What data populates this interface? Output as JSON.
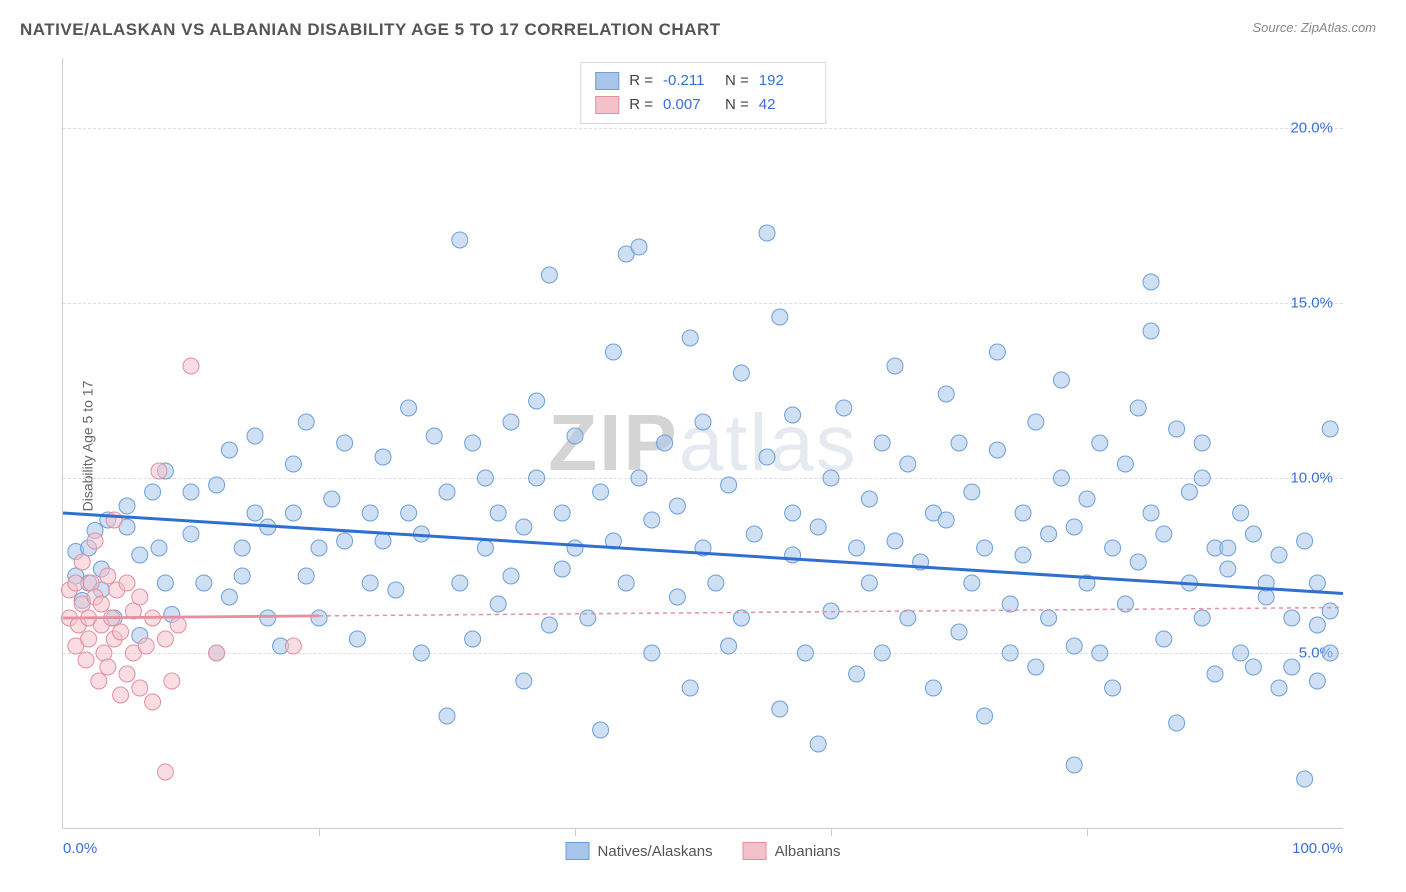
{
  "header": {
    "title": "NATIVE/ALASKAN VS ALBANIAN DISABILITY AGE 5 TO 17 CORRELATION CHART",
    "source_label": "Source: ZipAtlas.com"
  },
  "chart": {
    "type": "scatter",
    "ylabel": "Disability Age 5 to 17",
    "xlim": [
      0,
      100
    ],
    "ylim": [
      0,
      22
    ],
    "xticks": [
      0,
      20,
      40,
      60,
      80,
      100
    ],
    "xtick_labels_shown": {
      "0": "0.0%",
      "100": "100.0%"
    },
    "yticks": [
      5,
      10,
      15,
      20
    ],
    "ytick_labels": [
      "5.0%",
      "10.0%",
      "15.0%",
      "20.0%"
    ],
    "grid_color": "#dddddd",
    "axis_color": "#cccccc",
    "background_color": "#ffffff",
    "watermark_text": "ZIPatlas",
    "dot_radius": 8,
    "dot_opacity": 0.55,
    "series": [
      {
        "name": "Natives/Alaskans",
        "fill": "#a8c6ec",
        "stroke": "#6d9fd8",
        "line_color": "#2f6fd0",
        "line_width": 3,
        "line_dash": "none",
        "trend": {
          "y_at_x0": 9.0,
          "y_at_x100": 6.7
        },
        "R": "-0.211",
        "N": "192",
        "points": [
          [
            1,
            7.2
          ],
          [
            1,
            7.9
          ],
          [
            1.5,
            6.5
          ],
          [
            2,
            7.0
          ],
          [
            2,
            8.0
          ],
          [
            2.5,
            8.5
          ],
          [
            3,
            6.8
          ],
          [
            3,
            7.4
          ],
          [
            3.5,
            8.8
          ],
          [
            4,
            6.0
          ],
          [
            5,
            8.6
          ],
          [
            5,
            9.2
          ],
          [
            6,
            5.5
          ],
          [
            6,
            7.8
          ],
          [
            7,
            9.6
          ],
          [
            7.5,
            8.0
          ],
          [
            8,
            7.0
          ],
          [
            8,
            10.2
          ],
          [
            8.5,
            6.1
          ],
          [
            10,
            8.4
          ],
          [
            10,
            9.6
          ],
          [
            11,
            7.0
          ],
          [
            12,
            9.8
          ],
          [
            12,
            5.0
          ],
          [
            13,
            6.6
          ],
          [
            13,
            10.8
          ],
          [
            14,
            8.0
          ],
          [
            14,
            7.2
          ],
          [
            15,
            9.0
          ],
          [
            15,
            11.2
          ],
          [
            16,
            6.0
          ],
          [
            16,
            8.6
          ],
          [
            17,
            5.2
          ],
          [
            18,
            9.0
          ],
          [
            18,
            10.4
          ],
          [
            19,
            7.2
          ],
          [
            19,
            11.6
          ],
          [
            20,
            8.0
          ],
          [
            20,
            6.0
          ],
          [
            21,
            9.4
          ],
          [
            22,
            8.2
          ],
          [
            22,
            11.0
          ],
          [
            23,
            5.4
          ],
          [
            24,
            9.0
          ],
          [
            24,
            7.0
          ],
          [
            25,
            10.6
          ],
          [
            25,
            8.2
          ],
          [
            26,
            6.8
          ],
          [
            27,
            12.0
          ],
          [
            27,
            9.0
          ],
          [
            28,
            5.0
          ],
          [
            28,
            8.4
          ],
          [
            29,
            11.2
          ],
          [
            30,
            3.2
          ],
          [
            30,
            9.6
          ],
          [
            31,
            7.0
          ],
          [
            31,
            16.8
          ],
          [
            32,
            11.0
          ],
          [
            32,
            5.4
          ],
          [
            33,
            8.0
          ],
          [
            33,
            10.0
          ],
          [
            34,
            9.0
          ],
          [
            34,
            6.4
          ],
          [
            35,
            11.6
          ],
          [
            35,
            7.2
          ],
          [
            36,
            4.2
          ],
          [
            36,
            8.6
          ],
          [
            37,
            10.0
          ],
          [
            37,
            12.2
          ],
          [
            38,
            5.8
          ],
          [
            38,
            15.8
          ],
          [
            39,
            9.0
          ],
          [
            39,
            7.4
          ],
          [
            40,
            8.0
          ],
          [
            40,
            11.2
          ],
          [
            41,
            6.0
          ],
          [
            42,
            9.6
          ],
          [
            42,
            2.8
          ],
          [
            43,
            8.2
          ],
          [
            43,
            13.6
          ],
          [
            44,
            7.0
          ],
          [
            44,
            16.4
          ],
          [
            45,
            10.0
          ],
          [
            45,
            16.6
          ],
          [
            46,
            5.0
          ],
          [
            46,
            8.8
          ],
          [
            47,
            11.0
          ],
          [
            48,
            6.6
          ],
          [
            48,
            9.2
          ],
          [
            49,
            4.0
          ],
          [
            49,
            14.0
          ],
          [
            50,
            8.0
          ],
          [
            50,
            11.6
          ],
          [
            51,
            7.0
          ],
          [
            52,
            9.8
          ],
          [
            52,
            5.2
          ],
          [
            53,
            6.0
          ],
          [
            53,
            13.0
          ],
          [
            54,
            8.4
          ],
          [
            55,
            17.0
          ],
          [
            55,
            10.6
          ],
          [
            56,
            3.4
          ],
          [
            56,
            14.6
          ],
          [
            57,
            7.8
          ],
          [
            57,
            9.0
          ],
          [
            57,
            11.8
          ],
          [
            58,
            5.0
          ],
          [
            59,
            8.6
          ],
          [
            59,
            2.4
          ],
          [
            60,
            10.0
          ],
          [
            60,
            6.2
          ],
          [
            61,
            12.0
          ],
          [
            62,
            4.4
          ],
          [
            62,
            8.0
          ],
          [
            63,
            9.4
          ],
          [
            63,
            7.0
          ],
          [
            64,
            5.0
          ],
          [
            64,
            11.0
          ],
          [
            65,
            13.2
          ],
          [
            65,
            8.2
          ],
          [
            66,
            6.0
          ],
          [
            66,
            10.4
          ],
          [
            67,
            7.6
          ],
          [
            68,
            9.0
          ],
          [
            68,
            4.0
          ],
          [
            69,
            12.4
          ],
          [
            69,
            8.8
          ],
          [
            70,
            5.6
          ],
          [
            70,
            11.0
          ],
          [
            71,
            7.0
          ],
          [
            71,
            9.6
          ],
          [
            72,
            3.2
          ],
          [
            72,
            8.0
          ],
          [
            73,
            10.8
          ],
          [
            73,
            13.6
          ],
          [
            74,
            6.4
          ],
          [
            74,
            5.0
          ],
          [
            75,
            9.0
          ],
          [
            75,
            7.8
          ],
          [
            76,
            11.6
          ],
          [
            76,
            4.6
          ],
          [
            77,
            8.4
          ],
          [
            77,
            6.0
          ],
          [
            78,
            10.0
          ],
          [
            78,
            12.8
          ],
          [
            79,
            5.2
          ],
          [
            79,
            1.8
          ],
          [
            79,
            8.6
          ],
          [
            80,
            7.0
          ],
          [
            80,
            9.4
          ],
          [
            81,
            5.0
          ],
          [
            81,
            11.0
          ],
          [
            82,
            4.0
          ],
          [
            82,
            8.0
          ],
          [
            83,
            6.4
          ],
          [
            83,
            10.4
          ],
          [
            84,
            7.6
          ],
          [
            84,
            12.0
          ],
          [
            85,
            9.0
          ],
          [
            85,
            14.2
          ],
          [
            85,
            15.6
          ],
          [
            86,
            5.4
          ],
          [
            86,
            8.4
          ],
          [
            87,
            3.0
          ],
          [
            87,
            11.4
          ],
          [
            88,
            7.0
          ],
          [
            88,
            9.6
          ],
          [
            89,
            6.0
          ],
          [
            89,
            10.0
          ],
          [
            89,
            11.0
          ],
          [
            90,
            8.0
          ],
          [
            90,
            4.4
          ],
          [
            91,
            8.0
          ],
          [
            91,
            7.4
          ],
          [
            92,
            5.0
          ],
          [
            92,
            9.0
          ],
          [
            93,
            8.4
          ],
          [
            93,
            4.6
          ],
          [
            94,
            6.6
          ],
          [
            94,
            7.0
          ],
          [
            95,
            7.8
          ],
          [
            95,
            4.0
          ],
          [
            96,
            6.0
          ],
          [
            96,
            4.6
          ],
          [
            97,
            1.4
          ],
          [
            97,
            8.2
          ],
          [
            98,
            4.2
          ],
          [
            98,
            5.8
          ],
          [
            98,
            7.0
          ],
          [
            99,
            11.4
          ],
          [
            99,
            5.0
          ],
          [
            99,
            6.2
          ]
        ]
      },
      {
        "name": "Albanians",
        "fill": "#f4c1cb",
        "stroke": "#e38fa0",
        "line_color": "#e58fa0",
        "line_width": 2.8,
        "line_dash": "4 4",
        "trend": {
          "y_at_x0": 6.0,
          "y_at_x100": 6.3
        },
        "trend_solid_until": 20,
        "R": "0.007",
        "N": "42",
        "points": [
          [
            0.5,
            6.0
          ],
          [
            0.5,
            6.8
          ],
          [
            1,
            5.2
          ],
          [
            1,
            7.0
          ],
          [
            1.2,
            5.8
          ],
          [
            1.5,
            6.4
          ],
          [
            1.5,
            7.6
          ],
          [
            1.8,
            4.8
          ],
          [
            2,
            6.0
          ],
          [
            2,
            5.4
          ],
          [
            2.2,
            7.0
          ],
          [
            2.5,
            6.6
          ],
          [
            2.5,
            8.2
          ],
          [
            2.8,
            4.2
          ],
          [
            3,
            5.8
          ],
          [
            3,
            6.4
          ],
          [
            3.2,
            5.0
          ],
          [
            3.5,
            7.2
          ],
          [
            3.5,
            4.6
          ],
          [
            3.8,
            6.0
          ],
          [
            4,
            5.4
          ],
          [
            4,
            8.8
          ],
          [
            4.2,
            6.8
          ],
          [
            4.5,
            3.8
          ],
          [
            4.5,
            5.6
          ],
          [
            5,
            7.0
          ],
          [
            5,
            4.4
          ],
          [
            5.5,
            6.2
          ],
          [
            5.5,
            5.0
          ],
          [
            6,
            4.0
          ],
          [
            6,
            6.6
          ],
          [
            6.5,
            5.2
          ],
          [
            7,
            3.6
          ],
          [
            7,
            6.0
          ],
          [
            7.5,
            10.2
          ],
          [
            8,
            1.6
          ],
          [
            8,
            5.4
          ],
          [
            8.5,
            4.2
          ],
          [
            9,
            5.8
          ],
          [
            10,
            13.2
          ],
          [
            12,
            5.0
          ],
          [
            18,
            5.2
          ]
        ]
      }
    ]
  },
  "legend_bottom": {
    "items": [
      {
        "label": "Natives/Alaskans",
        "fill": "#a8c6ec",
        "stroke": "#6d9fd8"
      },
      {
        "label": "Albanians",
        "fill": "#f4c1cb",
        "stroke": "#e38fa0"
      }
    ]
  },
  "colors": {
    "title": "#555555",
    "tick_text": "#3b6fd6",
    "stat_value": "#3b6fd6"
  }
}
